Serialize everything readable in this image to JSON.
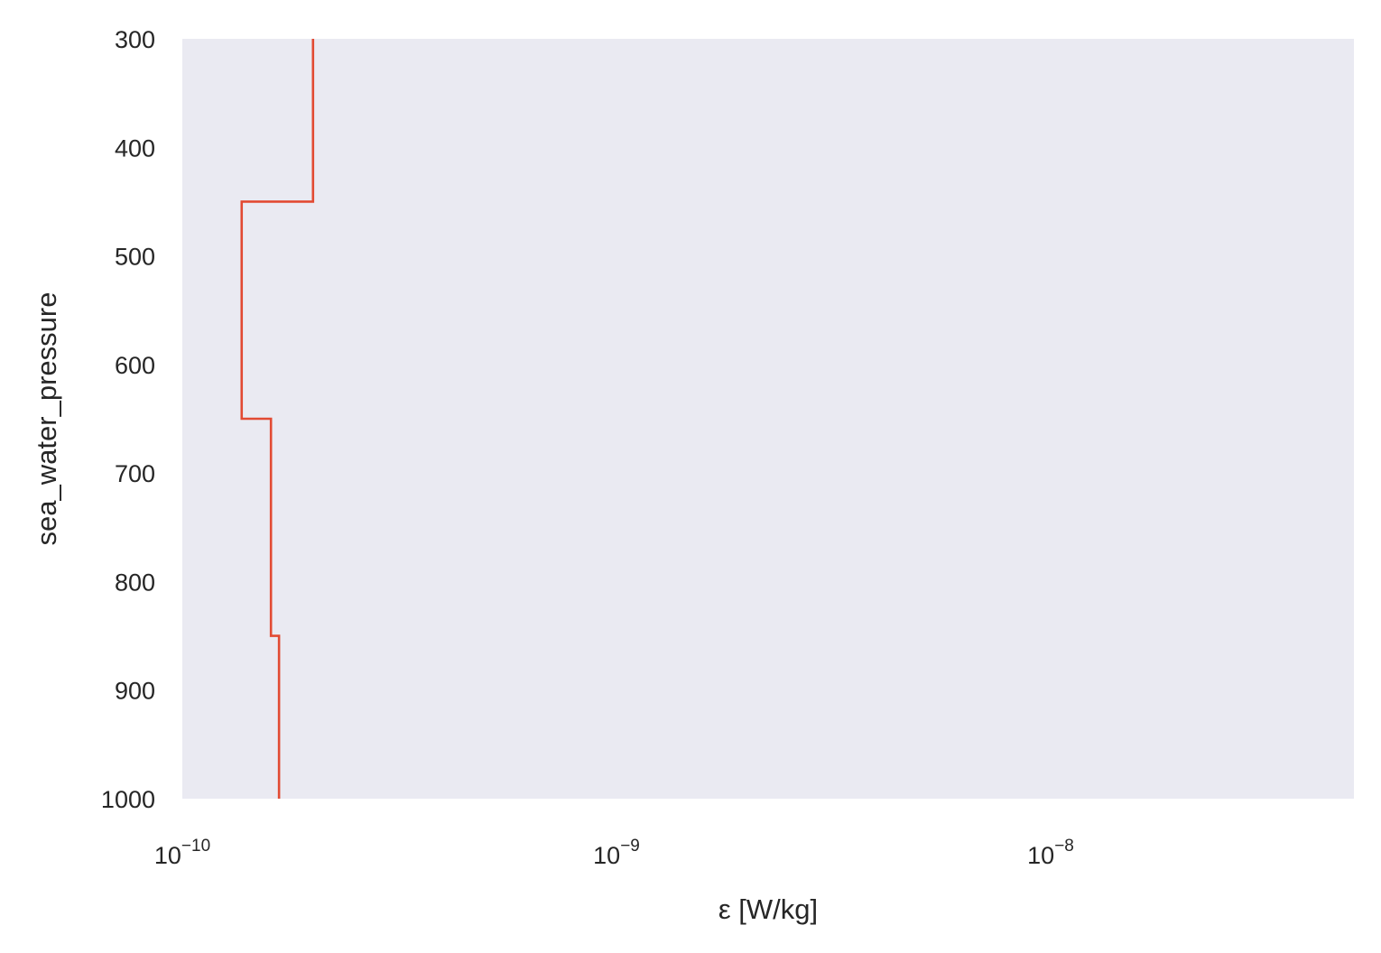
{
  "chart_data": {
    "type": "line",
    "drawstyle": "steps",
    "title": "",
    "xlabel": "ε [W/kg]",
    "ylabel": "sea_water_pressure",
    "xscale": "log",
    "xlim": [
      1e-10,
      5.2e-08
    ],
    "ylim": [
      1000,
      300
    ],
    "y_inverted": true,
    "grid": false,
    "background": "#eaeaf2",
    "line_color": "#e24a33",
    "x_ticks": [
      {
        "base": "10",
        "exp": "−10",
        "value": 1e-10
      },
      {
        "base": "10",
        "exp": "−9",
        "value": 1e-09
      },
      {
        "base": "10",
        "exp": "−8",
        "value": 1e-08
      }
    ],
    "y_ticks": [
      {
        "label": "300",
        "value": 300
      },
      {
        "label": "400",
        "value": 400
      },
      {
        "label": "500",
        "value": 500
      },
      {
        "label": "600",
        "value": 600
      },
      {
        "label": "700",
        "value": 700
      },
      {
        "label": "800",
        "value": 800
      },
      {
        "label": "900",
        "value": 900
      },
      {
        "label": "1000",
        "value": 1000
      }
    ],
    "series": [
      {
        "segments": [
          {
            "epsilon": 2e-10,
            "p_top": 300,
            "p_bottom": 450
          },
          {
            "epsilon": 1.37e-10,
            "p_top": 450,
            "p_bottom": 650
          },
          {
            "epsilon": 1.6e-10,
            "p_top": 650,
            "p_bottom": 850
          },
          {
            "epsilon": 1.67e-10,
            "p_top": 850,
            "p_bottom": 1000
          }
        ]
      }
    ]
  }
}
